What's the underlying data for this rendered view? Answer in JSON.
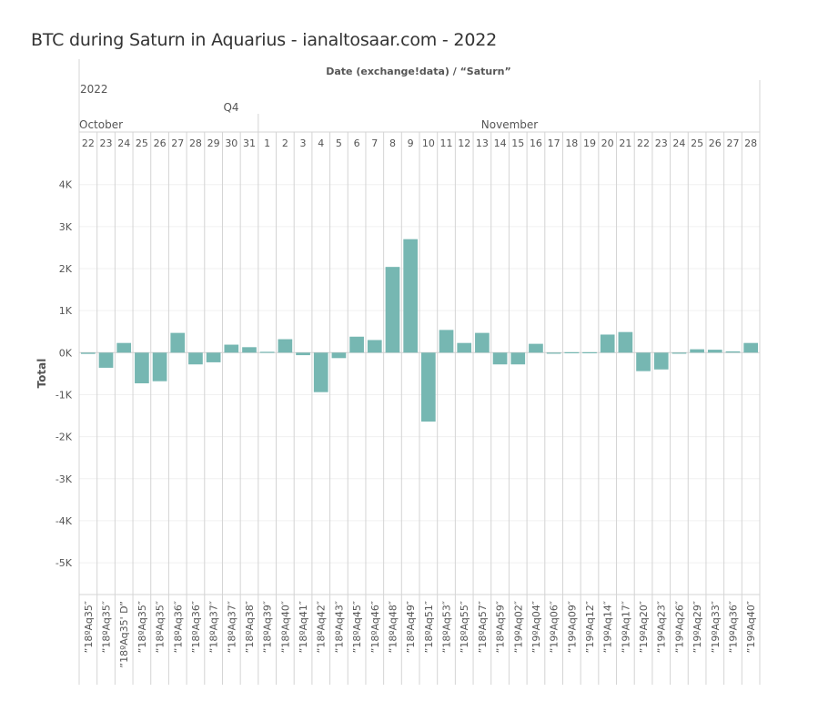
{
  "title": "BTC during Saturn in Aquarius - ianaltosaar.com - 2022",
  "chart_data": {
    "type": "bar",
    "column_title": "Date (exchange!data) / “Saturn”",
    "year": "2022",
    "quarter": "Q4",
    "months": [
      "October",
      "November"
    ],
    "ylabel": "Total",
    "ylim": [
      -5800,
      4600
    ],
    "yticks": [
      4000,
      3000,
      2000,
      1000,
      0,
      -1000,
      -2000,
      -3000,
      -4000,
      -5000
    ],
    "ytick_labels": [
      "4K",
      "3K",
      "2K",
      "1K",
      "0K",
      "-1K",
      "-2K",
      "-3K",
      "-4K",
      "-5K"
    ],
    "bar_color": "#76b7b2",
    "categories": [
      {
        "month": "October",
        "day": "22",
        "saturn": "”18ºAq35″",
        "value": -30
      },
      {
        "month": "October",
        "day": "23",
        "saturn": "”18ºAq35″",
        "value": -360
      },
      {
        "month": "October",
        "day": "24",
        "saturn": "”18ºAq35' D”",
        "value": 230
      },
      {
        "month": "October",
        "day": "25",
        "saturn": "”18ºAq35″",
        "value": -730
      },
      {
        "month": "October",
        "day": "26",
        "saturn": "”18ºAq35″",
        "value": -680
      },
      {
        "month": "October",
        "day": "27",
        "saturn": "”18ºAq36″",
        "value": 470
      },
      {
        "month": "October",
        "day": "28",
        "saturn": "”18ºAq36″",
        "value": -280
      },
      {
        "month": "October",
        "day": "29",
        "saturn": "”18ºAq37″",
        "value": -230
      },
      {
        "month": "October",
        "day": "30",
        "saturn": "”18ºAq37″",
        "value": 190
      },
      {
        "month": "October",
        "day": "31",
        "saturn": "”18ºAq38″",
        "value": 130
      },
      {
        "month": "November",
        "day": "1",
        "saturn": "”18ºAq39″",
        "value": 20
      },
      {
        "month": "November",
        "day": "2",
        "saturn": "”18ºAq40″",
        "value": 320
      },
      {
        "month": "November",
        "day": "3",
        "saturn": "”18ºAq41″",
        "value": -60
      },
      {
        "month": "November",
        "day": "4",
        "saturn": "”18ºAq42″",
        "value": -940
      },
      {
        "month": "November",
        "day": "5",
        "saturn": "”18ºAq43″",
        "value": -130
      },
      {
        "month": "November",
        "day": "6",
        "saturn": "”18ºAq45″",
        "value": 380
      },
      {
        "month": "November",
        "day": "7",
        "saturn": "”18ºAq46″",
        "value": 300
      },
      {
        "month": "November",
        "day": "8",
        "saturn": "”18ºAq48″",
        "value": 2040
      },
      {
        "month": "November",
        "day": "9",
        "saturn": "”18ºAq49″",
        "value": 2700
      },
      {
        "month": "November",
        "day": "10",
        "saturn": "”18ºAq51″",
        "value": -1640
      },
      {
        "month": "November",
        "day": "11",
        "saturn": "”18ºAq53″",
        "value": 540
      },
      {
        "month": "November",
        "day": "12",
        "saturn": "”18ºAq55″",
        "value": 230
      },
      {
        "month": "November",
        "day": "13",
        "saturn": "”18ºAq57″",
        "value": 470
      },
      {
        "month": "November",
        "day": "14",
        "saturn": "”18ºAq59″",
        "value": -280
      },
      {
        "month": "November",
        "day": "15",
        "saturn": "”19ºAq02″",
        "value": -280
      },
      {
        "month": "November",
        "day": "16",
        "saturn": "”19ºAq04″",
        "value": 210
      },
      {
        "month": "November",
        "day": "17",
        "saturn": "”19ºAq06″",
        "value": -10
      },
      {
        "month": "November",
        "day": "18",
        "saturn": "”19ºAq09″",
        "value": 10
      },
      {
        "month": "November",
        "day": "19",
        "saturn": "”19ºAq12″",
        "value": 10
      },
      {
        "month": "November",
        "day": "20",
        "saturn": "”19ºAq14″",
        "value": 430
      },
      {
        "month": "November",
        "day": "21",
        "saturn": "”19ºAq17″",
        "value": 490
      },
      {
        "month": "November",
        "day": "22",
        "saturn": "”19ºAq20″",
        "value": -440
      },
      {
        "month": "November",
        "day": "23",
        "saturn": "”19ºAq23″",
        "value": -400
      },
      {
        "month": "November",
        "day": "24",
        "saturn": "”19ºAq26″",
        "value": -10
      },
      {
        "month": "November",
        "day": "25",
        "saturn": "”19ºAq29″",
        "value": 80
      },
      {
        "month": "November",
        "day": "26",
        "saturn": "”19ºAq33″",
        "value": 70
      },
      {
        "month": "November",
        "day": "27",
        "saturn": "”19ºAq36″",
        "value": 30
      },
      {
        "month": "November",
        "day": "28",
        "saturn": "”19ºAq40″",
        "value": 230
      }
    ]
  }
}
